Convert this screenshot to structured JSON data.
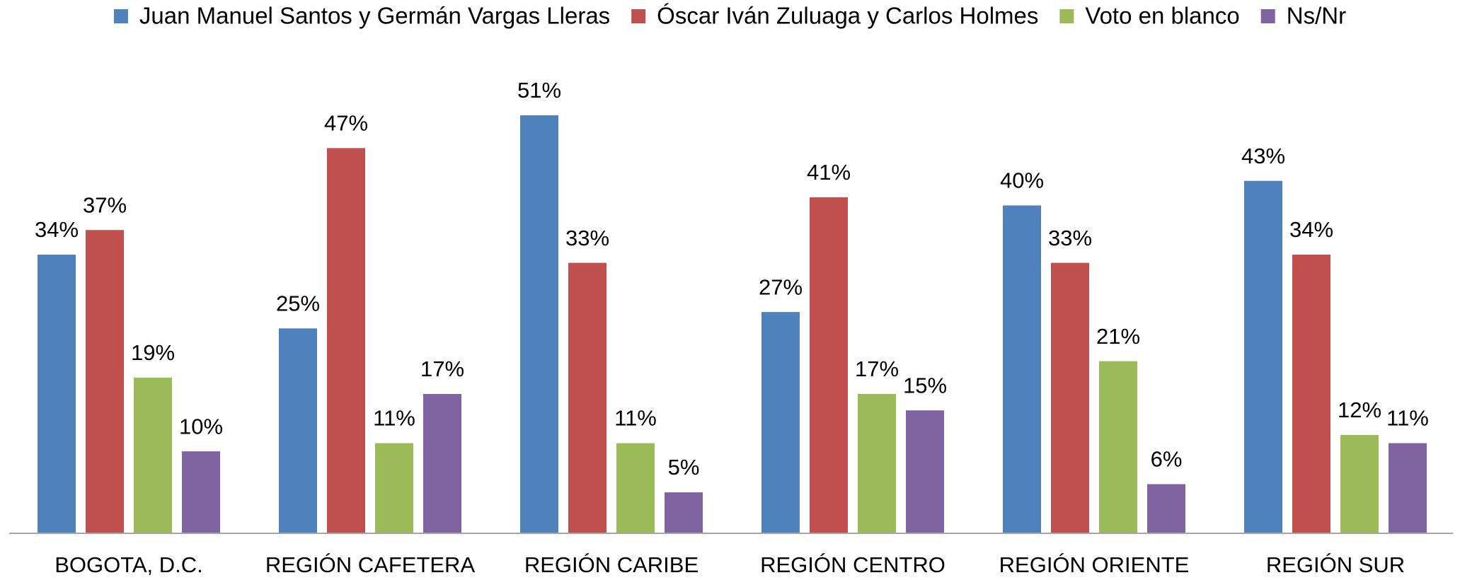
{
  "chart_data": {
    "type": "bar",
    "categories": [
      "BOGOTA, D.C.",
      "REGIÓN CAFETERA",
      "REGIÓN CARIBE",
      "REGIÓN CENTRO",
      "REGIÓN ORIENTE",
      "REGIÓN SUR"
    ],
    "series": [
      {
        "name": "Juan Manuel Santos y Germán Vargas Lleras",
        "color": "#4f81bd",
        "values": [
          34,
          25,
          51,
          27,
          40,
          43
        ],
        "value_labels": [
          "34%",
          "25%",
          "51%",
          "27%",
          "40%",
          "43%"
        ]
      },
      {
        "name": "Óscar Iván Zuluaga y Carlos Holmes",
        "color": "#c0504d",
        "values": [
          37,
          47,
          33,
          41,
          33,
          34
        ],
        "value_labels": [
          "37%",
          "47%",
          "33%",
          "41%",
          "33%",
          "34%"
        ]
      },
      {
        "name": "Voto en blanco",
        "color": "#9bbb59",
        "values": [
          19,
          11,
          11,
          17,
          21,
          12
        ],
        "value_labels": [
          "19%",
          "11%",
          "11%",
          "17%",
          "21%",
          "12%"
        ]
      },
      {
        "name": "Ns/Nr",
        "color": "#8064a2",
        "values": [
          10,
          17,
          5,
          15,
          6,
          11
        ],
        "value_labels": [
          "10%",
          "17%",
          "5%",
          "15%",
          "6%",
          "11%"
        ]
      }
    ],
    "legend": "top"
  }
}
